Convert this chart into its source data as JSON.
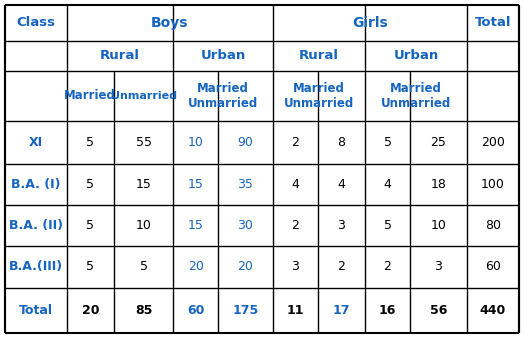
{
  "header_color": "#1565c0",
  "data_black": "#000000",
  "data_blue": "#1565c0",
  "bg_color": "#ffffff",
  "border_color": "#000000",
  "rows": [
    [
      "XI",
      "5",
      "55",
      "10",
      "90",
      "2",
      "8",
      "5",
      "25",
      "200"
    ],
    [
      "B.A. (I)",
      "5",
      "15",
      "15",
      "35",
      "4",
      "4",
      "4",
      "18",
      "100"
    ],
    [
      "B.A. (II)",
      "5",
      "10",
      "15",
      "30",
      "2",
      "3",
      "5",
      "10",
      "80"
    ],
    [
      "B.A.(III)",
      "5",
      "5",
      "20",
      "20",
      "3",
      "2",
      "2",
      "3",
      "60"
    ],
    [
      "Total",
      "20",
      "85",
      "60",
      "175",
      "11",
      "17",
      "16",
      "56",
      "440"
    ]
  ],
  "row_colors": [
    [
      "blue",
      "black",
      "black",
      "blue",
      "blue",
      "black",
      "black",
      "black",
      "black",
      "black"
    ],
    [
      "blue",
      "black",
      "black",
      "blue",
      "black",
      "black",
      "black",
      "black",
      "black",
      "black"
    ],
    [
      "blue",
      "black",
      "black",
      "blue",
      "black",
      "black",
      "black",
      "black",
      "black",
      "black"
    ],
    [
      "blue",
      "black",
      "black",
      "blue",
      "black",
      "black",
      "black",
      "black",
      "black",
      "black"
    ],
    [
      "blue",
      "black",
      "black",
      "blue",
      "blue",
      "black",
      "blue",
      "black",
      "black",
      "black"
    ]
  ],
  "figsize": [
    5.24,
    3.38
  ],
  "dpi": 100
}
